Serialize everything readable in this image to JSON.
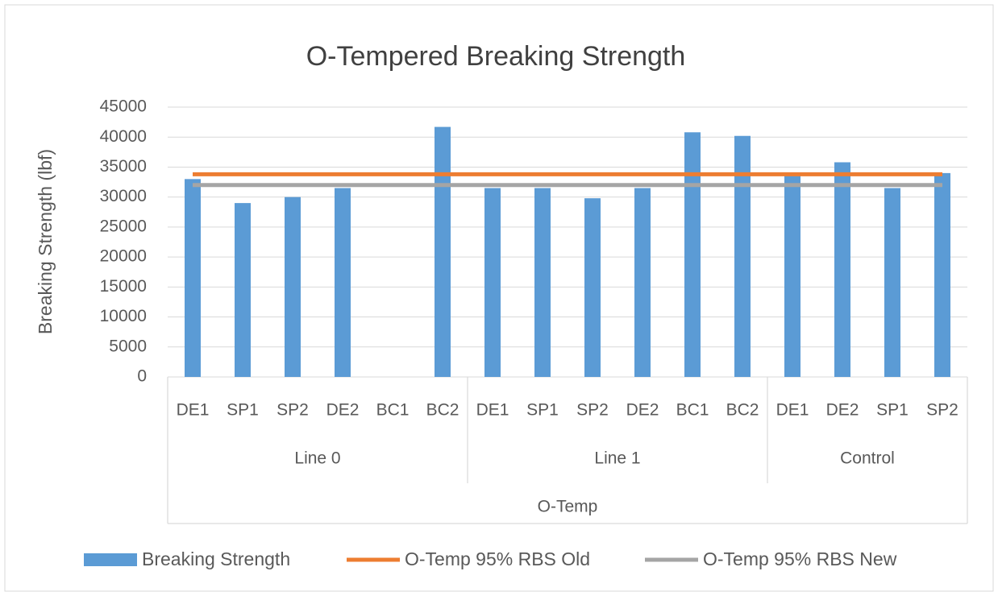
{
  "chart_data": {
    "type": "bar",
    "title": "O-Tempered  Breaking Strength",
    "y_label": "Breaking Strength (lbf)",
    "x_label": "O-Temp",
    "groups": [
      {
        "name": "Line 0",
        "categories": [
          "DE1",
          "SP1",
          "SP2",
          "DE2",
          "BC1",
          "BC2"
        ]
      },
      {
        "name": "Line 1",
        "categories": [
          "DE1",
          "SP1",
          "SP2",
          "DE2",
          "BC1",
          "BC2"
        ]
      },
      {
        "name": "Control",
        "categories": [
          "DE1",
          "DE2",
          "SP1",
          "SP2"
        ]
      }
    ],
    "series": [
      {
        "name": "Breaking Strength",
        "type": "bar",
        "color": "#5b9bd5",
        "values": [
          33000,
          29000,
          30000,
          31500,
          null,
          41700,
          31500,
          31500,
          29800,
          31500,
          40800,
          40200,
          33500,
          35800,
          31500,
          34000
        ]
      },
      {
        "name": "O-Temp 95% RBS Old",
        "type": "line",
        "color": "#ed7d31",
        "values": [
          33800,
          33800,
          33800,
          33800,
          33800,
          33800,
          33800,
          33800,
          33800,
          33800,
          33800,
          33800,
          33800,
          33800,
          33800,
          33800
        ]
      },
      {
        "name": "O-Temp 95% RBS New",
        "type": "line",
        "color": "#a5a5a5",
        "values": [
          32000,
          32000,
          32000,
          32000,
          32000,
          32000,
          32000,
          32000,
          32000,
          32000,
          32000,
          32000,
          32000,
          32000,
          32000,
          32000
        ]
      }
    ],
    "ylim": [
      0,
      45000
    ],
    "yticks": [
      0,
      5000,
      10000,
      15000,
      20000,
      25000,
      30000,
      35000,
      40000,
      45000
    ],
    "grid": true,
    "legend": "bottom"
  }
}
